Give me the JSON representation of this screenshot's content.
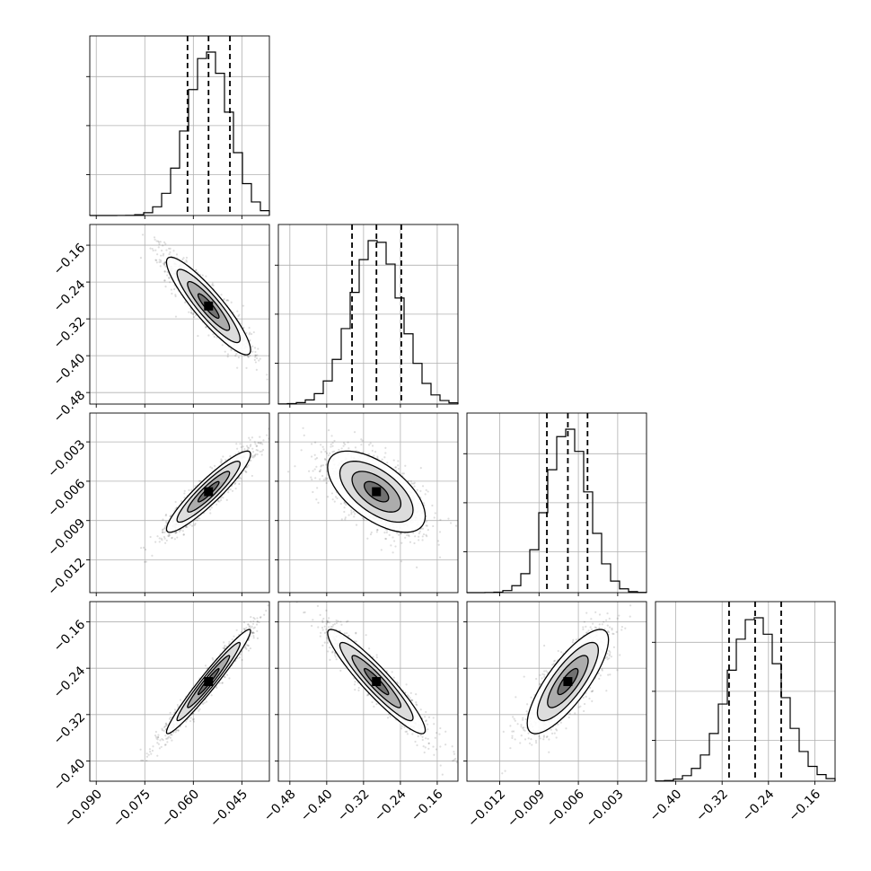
{
  "chart_data": {
    "type": "corner",
    "params": [
      {
        "range": [
          -0.092,
          -0.0365
        ],
        "ticks": [
          -0.09,
          -0.075,
          -0.06,
          -0.045
        ],
        "tick_labels": [
          "−0.090",
          "−0.075",
          "−0.060",
          "−0.045"
        ],
        "mean": -0.0553,
        "sd": 0.0065,
        "quantiles": [
          -0.0618,
          -0.0553,
          -0.0487
        ]
      },
      {
        "range": [
          -0.505,
          -0.115
        ],
        "ticks": [
          -0.48,
          -0.4,
          -0.32,
          -0.24,
          -0.16
        ],
        "tick_labels": [
          "−0.48",
          "−0.40",
          "−0.32",
          "−0.24",
          "−0.16"
        ],
        "mean": -0.292,
        "sd": 0.053,
        "quantiles": [
          -0.345,
          -0.292,
          -0.238
        ]
      },
      {
        "range": [
          -0.0145,
          -0.0008
        ],
        "ticks": [
          -0.012,
          -0.009,
          -0.006,
          -0.003
        ],
        "tick_labels": [
          "−0.012",
          "−0.009",
          "−0.006",
          "−0.003"
        ],
        "mean": -0.0068,
        "sd": 0.00155,
        "quantiles": [
          -0.0084,
          -0.0068,
          -0.0053
        ]
      },
      {
        "range": [
          -0.435,
          -0.125
        ],
        "ticks": [
          -0.4,
          -0.32,
          -0.24,
          -0.16
        ],
        "tick_labels": [
          "−0.40",
          "−0.32",
          "−0.24",
          "−0.16"
        ],
        "mean": -0.263,
        "sd": 0.045,
        "quantiles": [
          -0.308,
          -0.263,
          -0.218
        ]
      }
    ],
    "correlations": [
      [
        1.0,
        -0.9,
        0.92,
        0.97
      ],
      [
        -0.9,
        1.0,
        -0.6,
        -0.93
      ],
      [
        0.92,
        -0.6,
        1.0,
        0.8
      ],
      [
        0.97,
        -0.93,
        0.8,
        1.0
      ]
    ],
    "histogram_bins": 20,
    "grid": true,
    "quantile_lines": "dashed",
    "contour_levels_sigma": [
      0.5,
      1.0,
      1.5,
      2.0
    ]
  }
}
